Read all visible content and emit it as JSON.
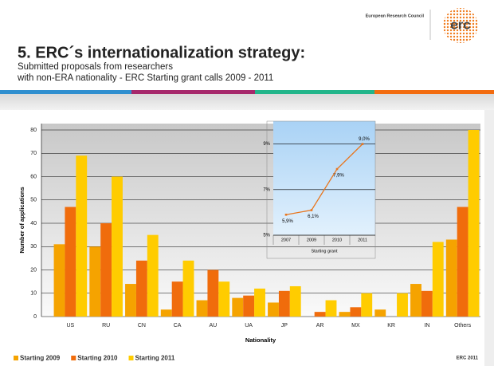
{
  "header": {
    "title": "5. ERC´s internationalization strategy:",
    "subtitle": [
      "Submitted proposals from researchers",
      "with non-ERA nationality - ERC Starting grant calls 2009 - 2011"
    ],
    "organization": "European Research Council",
    "logo": "erc"
  },
  "footer": "ERC 2011",
  "chart_data": [
    {
      "type": "bar",
      "ylabel": "Number of applications",
      "xlabel": "Nationality",
      "categories": [
        "US",
        "RU",
        "CN",
        "CA",
        "AU",
        "UA",
        "JP",
        "AR",
        "MX",
        "KR",
        "IN",
        "Others"
      ],
      "series": [
        {
          "name": "Starting 2009",
          "color": "#f5a300",
          "values": [
            31,
            30,
            14,
            3,
            7,
            8,
            6,
            0,
            2,
            3,
            14,
            33
          ]
        },
        {
          "name": "Starting 2010",
          "color": "#f06c0c",
          "values": [
            47,
            40,
            24,
            15,
            20,
            9,
            11,
            2,
            4,
            0,
            11,
            47
          ]
        },
        {
          "name": "Starting 2011",
          "color": "#ffcc00",
          "values": [
            69,
            60,
            35,
            24,
            15,
            12,
            13,
            7,
            10,
            10,
            32,
            80
          ]
        }
      ],
      "ylim": [
        0,
        80
      ],
      "yticks": [
        0,
        10,
        20,
        30,
        40,
        50,
        60,
        70,
        80
      ],
      "grid": true,
      "legend": "bottom"
    },
    {
      "type": "line",
      "xlabel": "Starting grant",
      "categories": [
        "2007",
        "2009",
        "2010",
        "2011"
      ],
      "values": [
        5.9,
        6.1,
        7.9,
        9.0
      ],
      "value_labels": [
        "5,9%",
        "6,1%",
        "7,9%",
        "9,0%"
      ],
      "color": "#e8761e",
      "ylim": [
        5,
        10
      ],
      "yticks": [
        {
          "value": 5,
          "label": "5%"
        },
        {
          "value": 7,
          "label": "7%"
        },
        {
          "value": 9,
          "label": "9%"
        }
      ],
      "grid": true
    }
  ]
}
